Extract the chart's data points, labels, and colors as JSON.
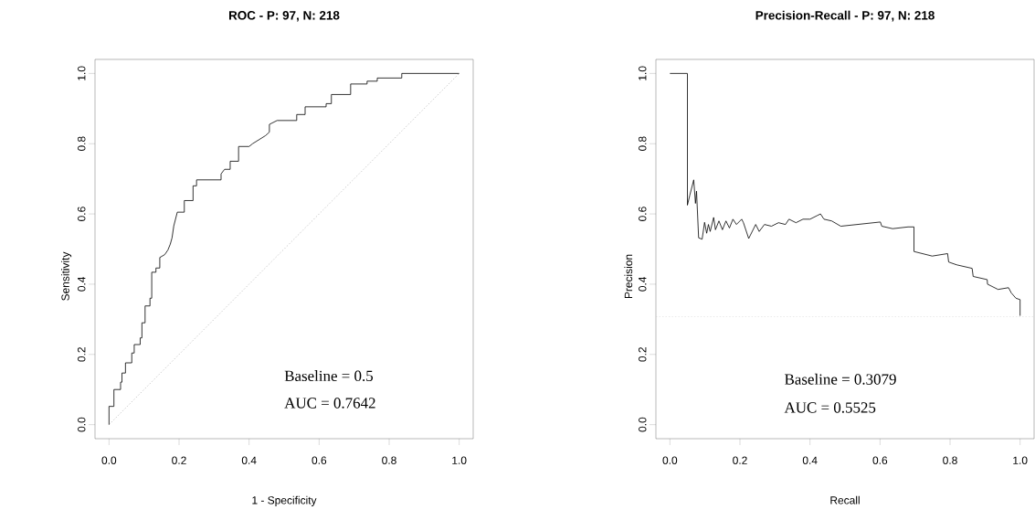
{
  "chart_data": [
    {
      "type": "line",
      "title": "ROC - P: 97, N: 218",
      "xlabel": "1 - Specificity",
      "ylabel": "Sensitivity",
      "xlim": [
        -0.04,
        1.04
      ],
      "ylim": [
        -0.04,
        1.04
      ],
      "xticks": [
        {
          "value": 0,
          "label": "0.0"
        },
        {
          "value": 0.2,
          "label": "0.2"
        },
        {
          "value": 0.4,
          "label": "0.4"
        },
        {
          "value": 0.6,
          "label": "0.6"
        },
        {
          "value": 0.8,
          "label": "0.8"
        },
        {
          "value": 1,
          "label": "1.0"
        }
      ],
      "yticks": [
        {
          "value": 0,
          "label": "0.0"
        },
        {
          "value": 0.2,
          "label": "0.2"
        },
        {
          "value": 0.4,
          "label": "0.4"
        },
        {
          "value": 0.6,
          "label": "0.6"
        },
        {
          "value": 0.8,
          "label": "0.8"
        },
        {
          "value": 1,
          "label": "1.0"
        }
      ],
      "series": [
        {
          "color": "#bebebe",
          "line_style": "dotted",
          "x": [
            0,
            1
          ],
          "values": [
            0,
            1
          ]
        },
        {
          "color": "#000000",
          "line_style": "solid",
          "x": [
            0,
            0,
            0.014,
            0.014,
            0.033,
            0.033,
            0.037,
            0.037,
            0.047,
            0.047,
            0.065,
            0.065,
            0.072,
            0.072,
            0.089,
            0.089,
            0.094,
            0.094,
            0.103,
            0.103,
            0.117,
            0.117,
            0.122,
            0.122,
            0.134,
            0.134,
            0.145,
            0.145,
            0.159,
            0.168,
            0.175,
            0.18,
            0.185,
            0.195,
            0.215,
            0.215,
            0.22,
            0.24,
            0.24,
            0.25,
            0.25,
            0.32,
            0.32,
            0.33,
            0.346,
            0.346,
            0.37,
            0.37,
            0.4,
            0.41,
            0.447,
            0.458,
            0.458,
            0.48,
            0.536,
            0.536,
            0.56,
            0.56,
            0.62,
            0.62,
            0.635,
            0.635,
            0.69,
            0.69,
            0.737,
            0.737,
            0.766,
            0.766,
            0.836,
            0.836,
            1
          ],
          "values": [
            0,
            0.052,
            0.052,
            0.1,
            0.1,
            0.121,
            0.121,
            0.147,
            0.147,
            0.176,
            0.176,
            0.204,
            0.204,
            0.228,
            0.228,
            0.247,
            0.247,
            0.29,
            0.29,
            0.338,
            0.338,
            0.36,
            0.36,
            0.434,
            0.434,
            0.446,
            0.446,
            0.476,
            0.484,
            0.497,
            0.514,
            0.532,
            0.566,
            0.605,
            0.605,
            0.638,
            0.638,
            0.638,
            0.68,
            0.68,
            0.697,
            0.697,
            0.714,
            0.727,
            0.727,
            0.75,
            0.75,
            0.792,
            0.792,
            0.8,
            0.823,
            0.833,
            0.855,
            0.866,
            0.866,
            0.883,
            0.883,
            0.905,
            0.905,
            0.914,
            0.914,
            0.94,
            0.94,
            0.97,
            0.97,
            0.978,
            0.978,
            0.987,
            0.987,
            1,
            1
          ]
        }
      ],
      "annotations": [
        "Baseline = 0.5",
        "AUC = 0.7642"
      ]
    },
    {
      "type": "line",
      "title": "Precision-Recall - P: 97, N: 218",
      "xlabel": "Recall",
      "ylabel": "Precision",
      "xlim": [
        -0.04,
        1.04
      ],
      "ylim": [
        -0.04,
        1.04
      ],
      "xticks": [
        {
          "value": 0,
          "label": "0.0"
        },
        {
          "value": 0.2,
          "label": "0.2"
        },
        {
          "value": 0.4,
          "label": "0.4"
        },
        {
          "value": 0.6,
          "label": "0.6"
        },
        {
          "value": 0.8,
          "label": "0.8"
        },
        {
          "value": 1,
          "label": "1.0"
        }
      ],
      "yticks": [
        {
          "value": 0,
          "label": "0.0"
        },
        {
          "value": 0.2,
          "label": "0.2"
        },
        {
          "value": 0.4,
          "label": "0.4"
        },
        {
          "value": 0.6,
          "label": "0.6"
        },
        {
          "value": 0.8,
          "label": "0.8"
        },
        {
          "value": 1,
          "label": "1.0"
        }
      ],
      "ref_lines": [
        {
          "axis": "y",
          "value": 0.3079,
          "color": "#bebebe",
          "line_style": "dotted"
        }
      ],
      "series": [
        {
          "color": "#000000",
          "line_style": "solid",
          "x": [
            0,
            0.05,
            0.05,
            0.057,
            0.068,
            0.073,
            0.076,
            0.082,
            0.092,
            0.099,
            0.105,
            0.11,
            0.115,
            0.125,
            0.13,
            0.14,
            0.15,
            0.16,
            0.17,
            0.18,
            0.19,
            0.205,
            0.21,
            0.225,
            0.23,
            0.245,
            0.255,
            0.27,
            0.29,
            0.31,
            0.33,
            0.34,
            0.36,
            0.38,
            0.4,
            0.42,
            0.43,
            0.44,
            0.462,
            0.488,
            0.601,
            0.605,
            0.636,
            0.68,
            0.697,
            0.697,
            0.749,
            0.793,
            0.796,
            0.819,
            0.863,
            0.866,
            0.906,
            0.907,
            0.937,
            0.967,
            0.975,
            0.988,
            1,
            1
          ],
          "values": [
            1,
            1,
            0.625,
            0.654,
            0.697,
            0.63,
            0.665,
            0.532,
            0.528,
            0.576,
            0.545,
            0.57,
            0.55,
            0.59,
            0.555,
            0.58,
            0.555,
            0.58,
            0.56,
            0.585,
            0.57,
            0.585,
            0.575,
            0.53,
            0.54,
            0.57,
            0.55,
            0.57,
            0.565,
            0.575,
            0.57,
            0.585,
            0.575,
            0.585,
            0.585,
            0.595,
            0.6,
            0.585,
            0.58,
            0.565,
            0.577,
            0.565,
            0.558,
            0.563,
            0.563,
            0.493,
            0.48,
            0.487,
            0.463,
            0.455,
            0.445,
            0.422,
            0.413,
            0.4,
            0.385,
            0.39,
            0.375,
            0.36,
            0.356,
            0.31
          ]
        }
      ],
      "annotations": [
        "Baseline = 0.3079",
        "AUC = 0.5525"
      ]
    }
  ]
}
